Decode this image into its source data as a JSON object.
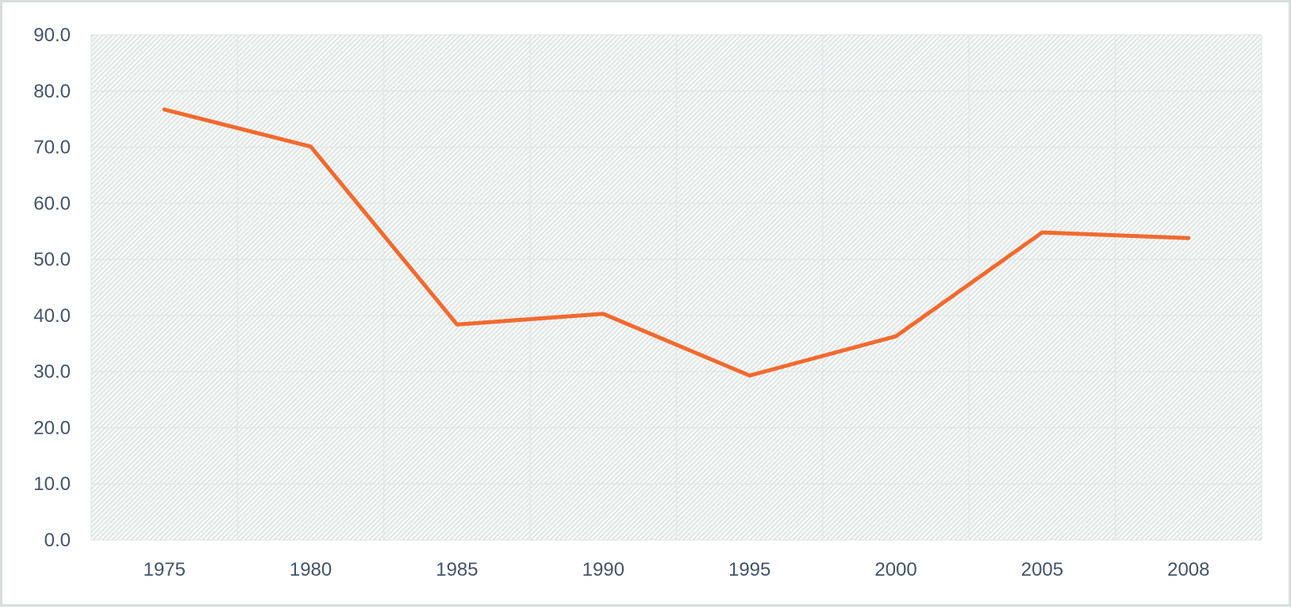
{
  "chart_data": {
    "type": "line",
    "title": "",
    "xlabel": "",
    "ylabel": "",
    "categories": [
      "1975",
      "1980",
      "1985",
      "1990",
      "1995",
      "2000",
      "2005",
      "2008"
    ],
    "series": [
      {
        "values": [
          76.7,
          70.1,
          38.4,
          40.3,
          29.3,
          36.3,
          54.8,
          53.8
        ],
        "color": "#f26a2e"
      }
    ],
    "ylim": [
      0,
      90
    ],
    "yticks": [
      "0.0",
      "10.0",
      "20.0",
      "30.0",
      "40.0",
      "50.0",
      "60.0",
      "70.0",
      "80.0",
      "90.0"
    ],
    "grid": true,
    "plot_fill": "hatched",
    "colors": {
      "line": "#f26a2e",
      "text": "#44546a",
      "grid": "#dfe7e5",
      "border": "#d6dedb"
    }
  }
}
